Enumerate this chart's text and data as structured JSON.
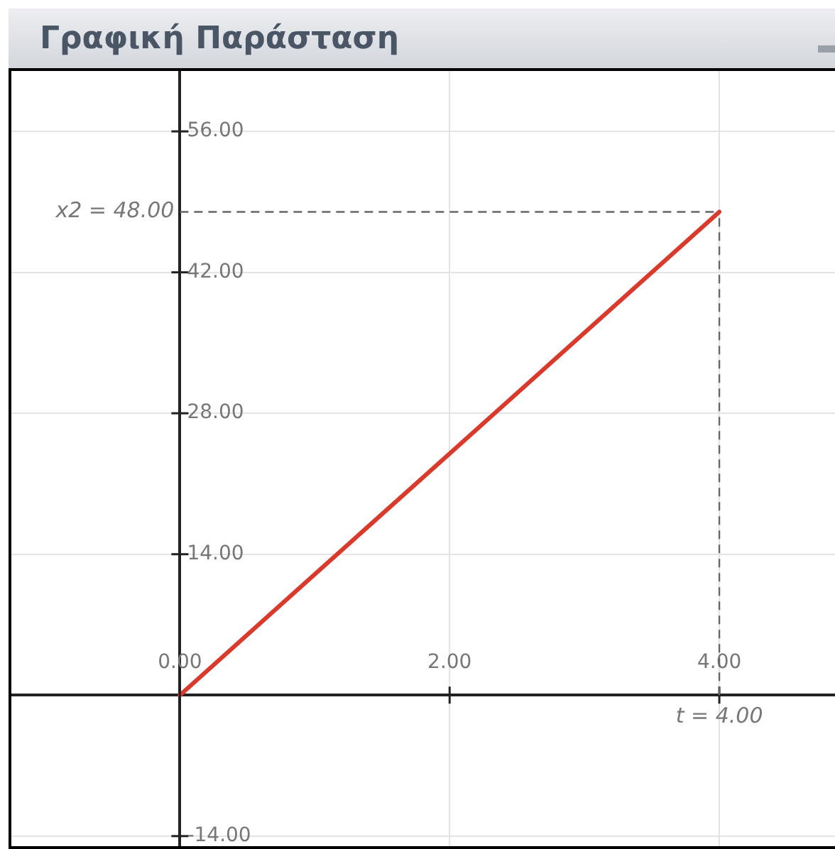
{
  "chart_data": {
    "type": "line",
    "title": "Γραφική Παράσταση",
    "x": [
      0,
      1,
      2,
      3,
      4
    ],
    "series": [
      {
        "color": "#d93a2b",
        "values": [
          0,
          12,
          24,
          36,
          48
        ]
      }
    ],
    "xlim": [
      -1.25,
      4.9
    ],
    "xticks": [
      {
        "value": 0,
        "label": "0.00"
      },
      {
        "value": 2,
        "label": "2.00"
      },
      {
        "value": 4,
        "label": "4.00"
      }
    ],
    "ylim": [
      -15,
      62
    ],
    "yticks": [
      {
        "value": -14,
        "label": "-14.00"
      },
      {
        "value": 14,
        "label": "14.00"
      },
      {
        "value": 28,
        "label": "28.00"
      },
      {
        "value": 42,
        "label": "42.00"
      },
      {
        "value": 56,
        "label": "56.00"
      }
    ],
    "ref_lines": [
      {
        "axis": "x",
        "value": 4,
        "label": "t = 4.00",
        "color": "#666666",
        "line_style": "dashed"
      },
      {
        "axis": "y",
        "value": 48,
        "label": "x2 = 48.00",
        "color": "#666666",
        "line_style": "dashed"
      }
    ],
    "grid": true,
    "marker": "none",
    "line_style": "solid",
    "legend": false
  }
}
